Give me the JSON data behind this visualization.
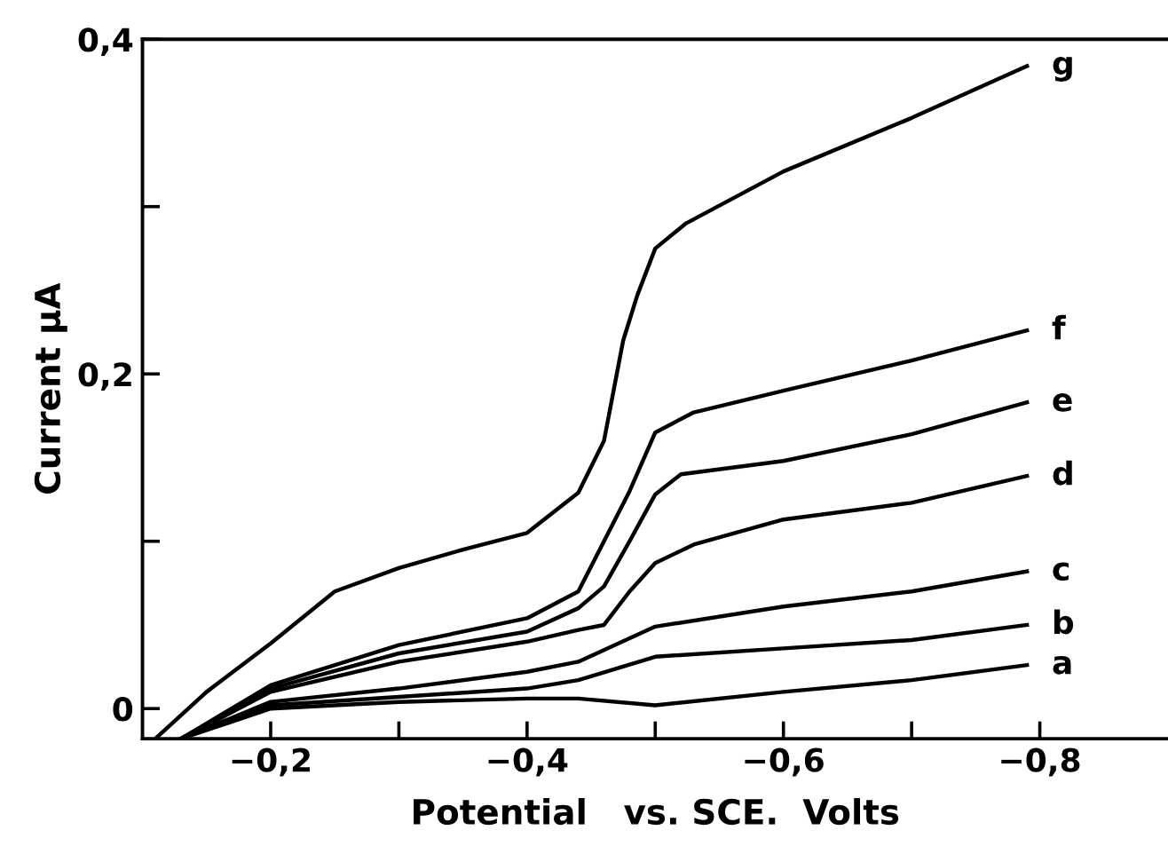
{
  "chart_data": {
    "type": "line",
    "xlabel": "Potential   vs. SCE.  Volts",
    "ylabel": "Current µA",
    "xlim": [
      -0.1,
      -0.9
    ],
    "ylim": [
      -0.018,
      0.4
    ],
    "xticks": [
      {
        "value": -0.2,
        "label": "−0,2"
      },
      {
        "value": -0.3,
        "label": null
      },
      {
        "value": -0.4,
        "label": "−0,4"
      },
      {
        "value": -0.5,
        "label": null
      },
      {
        "value": -0.6,
        "label": "−0,6"
      },
      {
        "value": -0.7,
        "label": null
      },
      {
        "value": -0.8,
        "label": "−0,8"
      }
    ],
    "yticks": [
      {
        "value": 0,
        "label": "0"
      },
      {
        "value": 0.1,
        "label": null
      },
      {
        "value": 0.2,
        "label": "0,2"
      },
      {
        "value": 0.3,
        "label": null
      },
      {
        "value": 0.4,
        "label": "0,4"
      }
    ],
    "grid": false,
    "legend": false,
    "marker": "none",
    "line_style": "solid",
    "series": [
      {
        "name": "g",
        "color": "#000000",
        "x": [
          -0.11,
          -0.15,
          -0.2,
          -0.25,
          -0.3,
          -0.35,
          -0.4,
          -0.44,
          -0.46,
          -0.475,
          -0.486,
          -0.5,
          -0.524,
          -0.6,
          -0.7,
          -0.79
        ],
        "values": [
          -0.018,
          0.01,
          0.039,
          0.07,
          0.084,
          0.095,
          0.105,
          0.129,
          0.16,
          0.22,
          0.247,
          0.275,
          0.29,
          0.321,
          0.353,
          0.384
        ]
      },
      {
        "name": "f",
        "color": "#000000",
        "x": [
          -0.13,
          -0.2,
          -0.3,
          -0.4,
          -0.44,
          -0.46,
          -0.48,
          -0.5,
          -0.53,
          -0.6,
          -0.7,
          -0.79
        ],
        "values": [
          -0.018,
          0.014,
          0.038,
          0.054,
          0.07,
          0.1,
          0.13,
          0.165,
          0.177,
          0.19,
          0.208,
          0.226
        ]
      },
      {
        "name": "e",
        "color": "#000000",
        "x": [
          -0.13,
          -0.2,
          -0.3,
          -0.4,
          -0.44,
          -0.46,
          -0.48,
          -0.5,
          -0.52,
          -0.6,
          -0.7,
          -0.79
        ],
        "values": [
          -0.018,
          0.012,
          0.033,
          0.046,
          0.06,
          0.073,
          0.1,
          0.128,
          0.14,
          0.148,
          0.164,
          0.183
        ]
      },
      {
        "name": "d",
        "color": "#000000",
        "x": [
          -0.13,
          -0.2,
          -0.3,
          -0.4,
          -0.44,
          -0.46,
          -0.48,
          -0.5,
          -0.53,
          -0.6,
          -0.7,
          -0.79
        ],
        "values": [
          -0.018,
          0.01,
          0.028,
          0.04,
          0.047,
          0.05,
          0.07,
          0.087,
          0.098,
          0.113,
          0.123,
          0.139
        ]
      },
      {
        "name": "c",
        "color": "#000000",
        "x": [
          -0.13,
          -0.2,
          -0.3,
          -0.4,
          -0.44,
          -0.5,
          -0.6,
          -0.7,
          -0.79
        ],
        "values": [
          -0.018,
          0.004,
          0.012,
          0.022,
          0.028,
          0.049,
          0.061,
          0.07,
          0.082
        ]
      },
      {
        "name": "b",
        "color": "#000000",
        "x": [
          -0.13,
          -0.2,
          -0.3,
          -0.4,
          -0.44,
          -0.5,
          -0.6,
          -0.7,
          -0.79
        ],
        "values": [
          -0.018,
          0.002,
          0.007,
          0.012,
          0.017,
          0.031,
          0.036,
          0.041,
          0.05
        ]
      },
      {
        "name": "a",
        "color": "#000000",
        "x": [
          -0.13,
          -0.2,
          -0.3,
          -0.4,
          -0.44,
          -0.5,
          -0.6,
          -0.7,
          -0.79
        ],
        "values": [
          -0.018,
          0.0,
          0.004,
          0.006,
          0.006,
          0.002,
          0.01,
          0.017,
          0.026
        ]
      }
    ]
  }
}
